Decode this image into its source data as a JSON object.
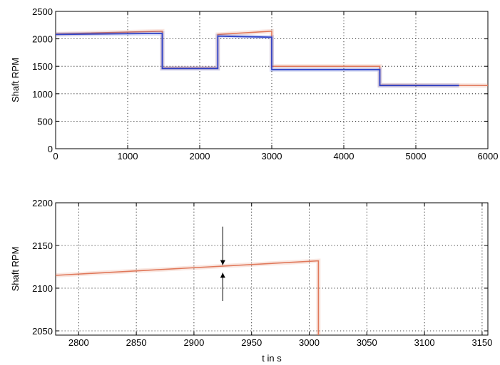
{
  "chart_data": [
    {
      "type": "line",
      "title": "",
      "xlabel": "",
      "ylabel": "Shaft RPM",
      "xlim": [
        0,
        6000
      ],
      "ylim": [
        0,
        2500
      ],
      "xticks": [
        0,
        1000,
        2000,
        3000,
        4000,
        5000,
        6000
      ],
      "xtick_labels": [
        "0",
        "1000",
        "2000",
        "3000",
        "4000",
        "5000",
        "6000"
      ],
      "yticks": [
        0,
        500,
        1000,
        1500,
        2000,
        2500
      ],
      "ytick_labels": [
        "0",
        "500",
        "1000",
        "1500",
        "2000",
        "2500"
      ],
      "grid": true,
      "series": [
        {
          "color": "#e0785a",
          "x": [
            0,
            1480,
            1480,
            2250,
            2250,
            3000,
            3000,
            4500,
            4500,
            6000
          ],
          "y": [
            2090,
            2140,
            1470,
            1470,
            2080,
            2140,
            1500,
            1500,
            1160,
            1150
          ]
        },
        {
          "color": "#2f44c8",
          "x": [
            0,
            1480,
            1480,
            2250,
            2250,
            3000,
            3000,
            4500,
            4500,
            5600
          ],
          "y": [
            2080,
            2100,
            1460,
            1460,
            2050,
            2030,
            1440,
            1440,
            1150,
            1150
          ]
        }
      ]
    },
    {
      "type": "line",
      "title": "",
      "xlabel": "t in s",
      "ylabel": "Shaft RPM",
      "xlim": [
        2780,
        3155
      ],
      "ylim": [
        2045,
        2200
      ],
      "xticks": [
        2800,
        2850,
        2900,
        2950,
        3000,
        3050,
        3100,
        3150
      ],
      "xtick_labels": [
        "2800",
        "2850",
        "2900",
        "2950",
        "3000",
        "3050",
        "3100",
        "3150"
      ],
      "yticks": [
        2050,
        2100,
        2150,
        2200
      ],
      "ytick_labels": [
        "2050",
        "2100",
        "2150",
        "2200"
      ],
      "grid": true,
      "series": [
        {
          "color": "#e0785a",
          "x": [
            2780,
            3008,
            3008
          ],
          "y": [
            2115,
            2132,
            2045
          ]
        }
      ],
      "annotations": [
        {
          "type": "arrow-down",
          "x": 2925,
          "y_from": 2172,
          "y_to": 2127
        },
        {
          "type": "arrow-up",
          "x": 2925,
          "y_from": 2085,
          "y_to": 2118
        }
      ]
    }
  ]
}
